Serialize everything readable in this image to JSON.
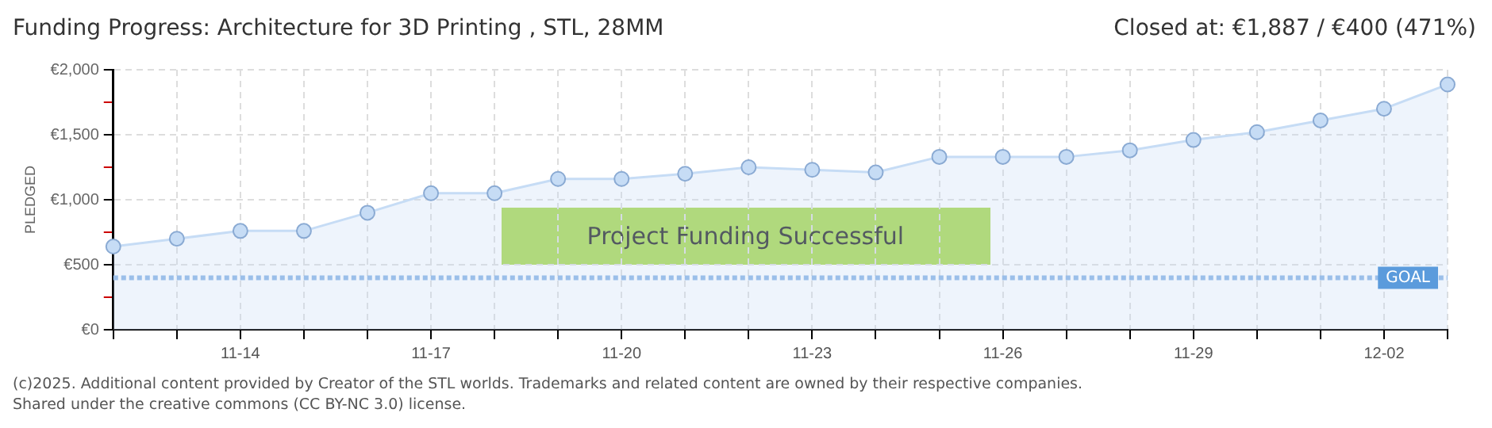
{
  "chart_data": {
    "type": "area",
    "title": "Funding Progress: Architecture for 3D Printing , STL, 28MM",
    "subtitle": "Closed at:  €1,887 /  €400 (471%)",
    "ylabel": "PLEDGED",
    "categories": [
      null,
      null,
      "11-14",
      null,
      null,
      "11-17",
      null,
      null,
      "11-20",
      null,
      null,
      "11-23",
      null,
      null,
      "11-26",
      null,
      null,
      "11-29",
      null,
      null,
      "12-02",
      null
    ],
    "series": [
      {
        "color": "#c6dcf5",
        "values": [
          640,
          700,
          760,
          760,
          900,
          1050,
          1050,
          1160,
          1160,
          1200,
          1250,
          1230,
          1210,
          1330,
          1330,
          1330,
          1380,
          1460,
          1520,
          1610,
          1700,
          1887
        ]
      }
    ],
    "ylim": [
      0,
      2000
    ],
    "yticks": [
      {
        "value": 0,
        "label": "€0"
      },
      {
        "value": 250,
        "label": null
      },
      {
        "value": 500,
        "label": "€500"
      },
      {
        "value": 750,
        "label": null
      },
      {
        "value": 1000,
        "label": "€1,000"
      },
      {
        "value": 1250,
        "label": null
      },
      {
        "value": 1500,
        "label": "€1,500"
      },
      {
        "value": 1750,
        "label": null
      },
      {
        "value": 2000,
        "label": "€2,000"
      }
    ],
    "grid": true,
    "legend": false,
    "marker": "circle",
    "line_style": "solid",
    "ref_lines": [
      {
        "axis": "y",
        "value": 400,
        "label": "GOAL",
        "color": "#9bbfe9",
        "line_style": "dotted"
      }
    ],
    "annotations": [
      "Project Funding Successful",
      "(c)2025. Additional content provided by Creator of the STL worlds. Trademarks and related content are owned by their respective companies.",
      "Shared under the creative commons (CC BY-NC 3.0) license."
    ]
  }
}
